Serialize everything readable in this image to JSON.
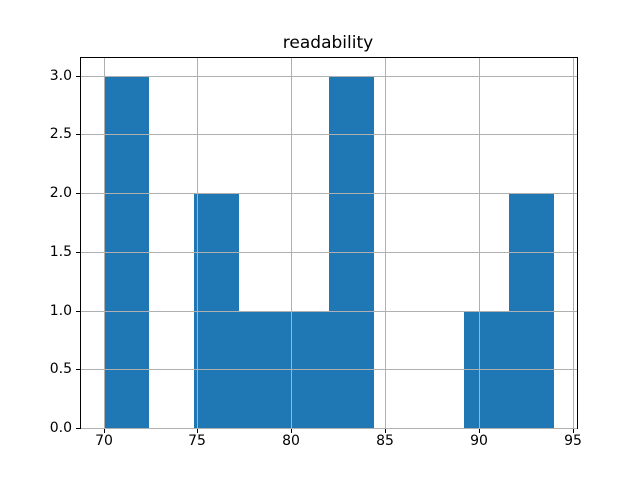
{
  "figure": {
    "background": "#ffffff"
  },
  "chart_data": {
    "type": "bar",
    "subtype": "histogram",
    "title": "readability",
    "xlabel": "",
    "ylabel": "",
    "bin_edges": [
      70.0,
      72.4,
      74.8,
      77.2,
      79.6,
      82.0,
      84.4,
      86.8,
      89.2,
      91.6,
      94.0
    ],
    "counts": [
      3,
      0,
      2,
      1,
      1,
      3,
      0,
      0,
      1,
      2
    ],
    "xlim": [
      68.8,
      95.2
    ],
    "ylim": [
      0,
      3.15
    ],
    "xticks": {
      "values": [
        70,
        75,
        80,
        85,
        90,
        95
      ],
      "labels": [
        "70",
        "75",
        "80",
        "85",
        "90",
        "95"
      ]
    },
    "yticks": {
      "values": [
        0.0,
        0.5,
        1.0,
        1.5,
        2.0,
        2.5,
        3.0
      ],
      "labels": [
        "0.0",
        "0.5",
        "1.0",
        "1.5",
        "2.0",
        "2.5",
        "3.0"
      ]
    },
    "grid": true,
    "grid_over_bars": true,
    "legend": false,
    "bar_color": "#1f77b4",
    "grid_color": "#b0b0b0",
    "spine_color": "#000000",
    "text_color": "#000000"
  }
}
